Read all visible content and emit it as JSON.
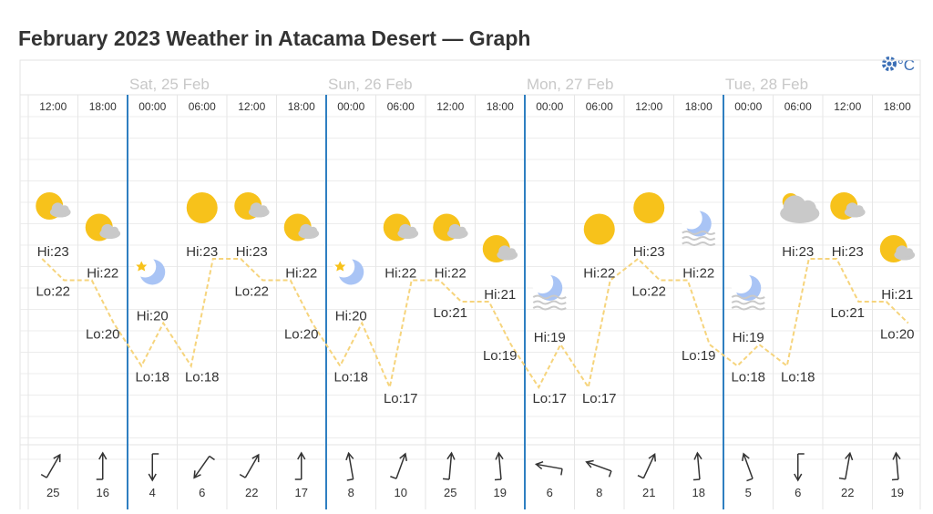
{
  "header": {
    "title": "February 2023 Weather in Atacama Desert — Graph",
    "unit": "°C"
  },
  "days": [
    {
      "label": "Sat, 25 Feb"
    },
    {
      "label": "Sun, 26 Feb"
    },
    {
      "label": "Mon, 27 Feb"
    },
    {
      "label": "Tue, 28 Feb"
    }
  ],
  "hi_label": "Hi:",
  "lo_label": "Lo:",
  "columns": [
    {
      "time": "12:00",
      "icon": "partly",
      "hi": 23,
      "lo": 22,
      "wind": 25,
      "wind_deg": 30
    },
    {
      "time": "18:00",
      "icon": "partly",
      "hi": 22,
      "lo": 20,
      "wind": 16,
      "wind_deg": 0
    },
    {
      "time": "00:00",
      "icon": "moon",
      "hi": 20,
      "lo": 18,
      "wind": 4,
      "wind_deg": 180
    },
    {
      "time": "06:00",
      "icon": "sun",
      "hi": 23,
      "lo": 18,
      "wind": 6,
      "wind_deg": 215
    },
    {
      "time": "12:00",
      "icon": "partly",
      "hi": 23,
      "lo": 22,
      "wind": 22,
      "wind_deg": 30
    },
    {
      "time": "18:00",
      "icon": "partly",
      "hi": 22,
      "lo": 20,
      "wind": 17,
      "wind_deg": 0
    },
    {
      "time": "00:00",
      "icon": "moon",
      "hi": 20,
      "lo": 18,
      "wind": 8,
      "wind_deg": 350
    },
    {
      "time": "06:00",
      "icon": "partly",
      "hi": 22,
      "lo": 17,
      "wind": 10,
      "wind_deg": 20
    },
    {
      "time": "12:00",
      "icon": "partly",
      "hi": 22,
      "lo": 21,
      "wind": 25,
      "wind_deg": 5
    },
    {
      "time": "18:00",
      "icon": "partly",
      "hi": 21,
      "lo": 19,
      "wind": 19,
      "wind_deg": 355
    },
    {
      "time": "00:00",
      "icon": "moonfog",
      "hi": 19,
      "lo": 17,
      "wind": 6,
      "wind_deg": 280
    },
    {
      "time": "06:00",
      "icon": "sun",
      "hi": 22,
      "lo": 17,
      "wind": 8,
      "wind_deg": 290
    },
    {
      "time": "12:00",
      "icon": "sun",
      "hi": 23,
      "lo": 22,
      "wind": 21,
      "wind_deg": 25
    },
    {
      "time": "18:00",
      "icon": "moonfog",
      "hi": 22,
      "lo": 19,
      "wind": 18,
      "wind_deg": 355
    },
    {
      "time": "00:00",
      "icon": "moonfog",
      "hi": 19,
      "lo": 18,
      "wind": 5,
      "wind_deg": 340
    },
    {
      "time": "06:00",
      "icon": "cloud",
      "hi": 23,
      "lo": 18,
      "wind": 6,
      "wind_deg": 180
    },
    {
      "time": "12:00",
      "icon": "partly",
      "hi": 23,
      "lo": 21,
      "wind": 22,
      "wind_deg": 10
    },
    {
      "time": "18:00",
      "icon": "partly",
      "hi": 21,
      "lo": 20,
      "wind": 19,
      "wind_deg": 355
    }
  ]
}
